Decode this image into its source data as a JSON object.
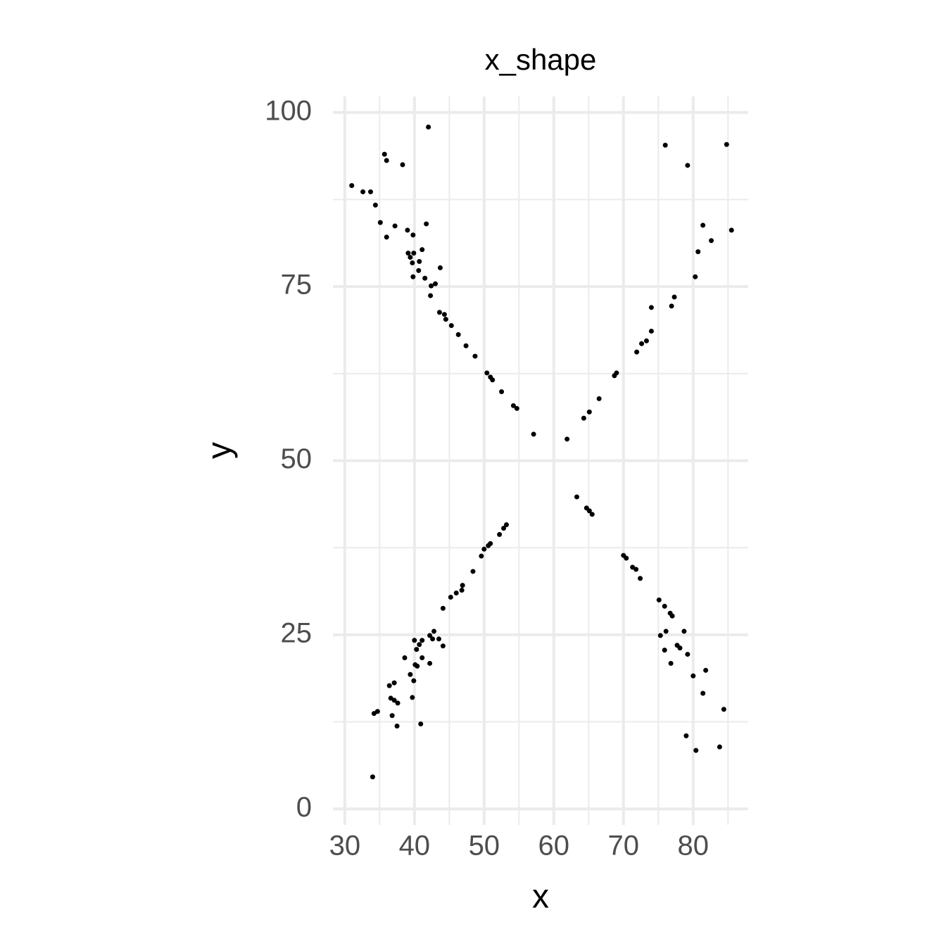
{
  "chart_data": {
    "type": "scatter",
    "title": "x_shape",
    "x_label": "x",
    "y_label": "y",
    "x": [
      31.0,
      32.6,
      33.7,
      34.4,
      35.1,
      35.7,
      36.0,
      36.0,
      37.2,
      38.3,
      42.0,
      39.0,
      39.8,
      39.1,
      39.4,
      39.9,
      39.7,
      40.7,
      41.1,
      41.7,
      40.6,
      39.8,
      41.5,
      42.4,
      43.0,
      43.7,
      42.3,
      43.6,
      44.3,
      44.5,
      45.3,
      46.3,
      47.4,
      48.7,
      50.4,
      50.9,
      51.2,
      52.5,
      54.2,
      54.7,
      57.1,
      61.9,
      64.3,
      65.1,
      66.5,
      68.7,
      69.0,
      71.9,
      72.6,
      73.3,
      74.0,
      74.0,
      77.3,
      76.9,
      76.0,
      79.2,
      84.8,
      81.4,
      82.6,
      80.7,
      80.3,
      85.5,
      63.3,
      64.7,
      65.1,
      65.5,
      70.0,
      70.4,
      71.3,
      71.8,
      72.4,
      75.1,
      75.9,
      76.7,
      77.0,
      75.3,
      76.1,
      75.9,
      76.8,
      77.7,
      78.1,
      78.7,
      79.2,
      80.0,
      81.8,
      81.4,
      79.0,
      80.4,
      83.8,
      84.4,
      53.2,
      52.8,
      52.2,
      50.9,
      50.6,
      50.0,
      49.6,
      48.4,
      46.9,
      46.8,
      46.0,
      45.2,
      44.1,
      42.8,
      42.2,
      42.6,
      43.5,
      44.1,
      41.1,
      40.7,
      40.3,
      40.0,
      41.1,
      42.2,
      40.4,
      40.1,
      38.6,
      39.4,
      39.9,
      37.1,
      36.4,
      36.6,
      37.1,
      37.6,
      36.8,
      34.7,
      34.2,
      37.5,
      40.9,
      39.7,
      34.0
    ],
    "y": [
      89.5,
      88.6,
      88.6,
      86.7,
      84.2,
      94.0,
      93.1,
      82.1,
      83.7,
      92.5,
      97.9,
      83.1,
      82.4,
      79.8,
      79.2,
      79.8,
      78.4,
      78.6,
      80.3,
      84.0,
      77.3,
      76.4,
      76.2,
      75.1,
      75.4,
      77.7,
      73.7,
      71.3,
      71.0,
      70.3,
      69.4,
      68.1,
      66.5,
      65.0,
      62.6,
      62.0,
      61.6,
      59.9,
      57.9,
      57.5,
      53.8,
      53.1,
      56.1,
      57.0,
      58.9,
      62.2,
      62.6,
      65.6,
      66.8,
      67.2,
      68.6,
      72.0,
      73.5,
      72.2,
      95.3,
      92.4,
      95.4,
      83.8,
      81.6,
      80.0,
      76.4,
      83.1,
      44.8,
      43.2,
      42.8,
      42.3,
      36.4,
      36.0,
      34.7,
      34.4,
      33.1,
      30.0,
      29.1,
      28.1,
      27.7,
      24.9,
      25.5,
      22.8,
      20.9,
      23.5,
      23.1,
      25.5,
      22.2,
      19.1,
      19.9,
      16.6,
      10.5,
      8.4,
      8.9,
      14.3,
      40.8,
      40.3,
      39.4,
      38.1,
      37.8,
      37.3,
      36.3,
      34.1,
      32.1,
      31.4,
      31.0,
      30.4,
      28.8,
      25.5,
      24.9,
      24.4,
      24.4,
      23.4,
      24.2,
      23.6,
      22.9,
      24.2,
      21.7,
      20.9,
      20.5,
      20.7,
      21.7,
      19.3,
      18.4,
      18.1,
      17.7,
      15.9,
      15.6,
      15.2,
      13.4,
      14.0,
      13.7,
      11.9,
      12.2,
      16.0,
      4.6
    ],
    "color": "#000000",
    "xlim": [
      28.3,
      87.9
    ],
    "ylim": [
      -2.3,
      102.3
    ],
    "xticks": [
      30,
      40,
      50,
      60,
      70,
      80
    ],
    "yticks": [
      0,
      25,
      50,
      75,
      100
    ],
    "xminor": [
      35,
      45,
      55,
      65,
      75,
      85
    ],
    "yminor": [
      12.5,
      37.5,
      62.5,
      87.5
    ],
    "grid": true
  }
}
